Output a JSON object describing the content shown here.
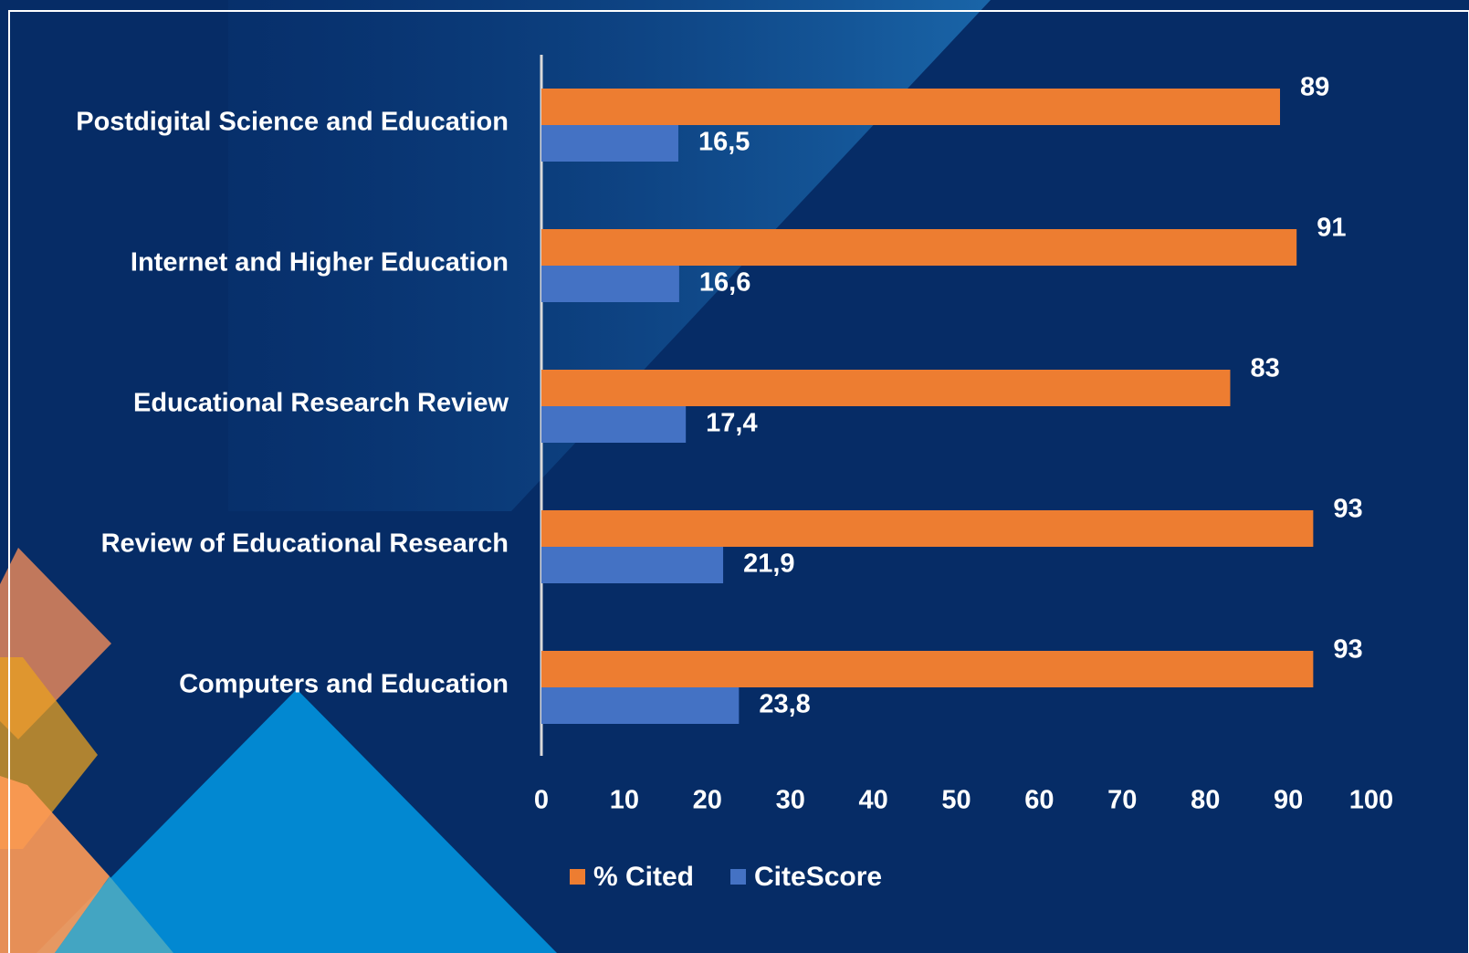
{
  "chart_data": {
    "type": "hbar",
    "categories": [
      "Postdigital Science and Education",
      "Internet and Higher Education",
      "Educational Research Review",
      "Review of Educational Research",
      "Computers and Education"
    ],
    "series": [
      {
        "name": "% Cited",
        "color": "#ed7d31",
        "values": [
          89,
          91,
          83,
          93,
          93
        ]
      },
      {
        "name": "CiteScore",
        "color": "#4472c4",
        "values": [
          16.5,
          16.6,
          17.4,
          21.9,
          23.8
        ],
        "value_labels": [
          "16,5",
          "16,6",
          "17,4",
          "21,9",
          "23,8"
        ]
      }
    ],
    "xlim": [
      0,
      100
    ],
    "xticks": [
      0,
      10,
      20,
      30,
      40,
      50,
      60,
      70,
      80,
      90,
      100
    ],
    "grid": false,
    "legend": "bottom"
  }
}
